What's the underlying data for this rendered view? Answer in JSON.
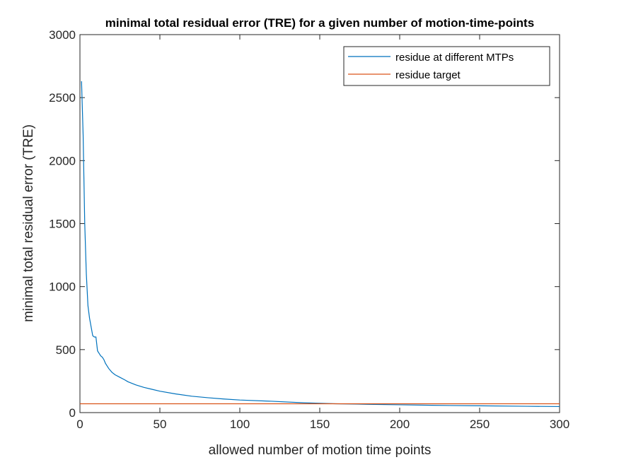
{
  "chart_data": {
    "type": "line",
    "title": "minimal total residual error (TRE) for a given number of motion-time-points",
    "xlabel": "allowed number of motion time points",
    "ylabel": "minimal total residual error (TRE)",
    "xlim": [
      0,
      300
    ],
    "ylim": [
      0,
      3000
    ],
    "xticks": [
      0,
      50,
      100,
      150,
      200,
      250,
      300
    ],
    "yticks": [
      0,
      500,
      1000,
      1500,
      2000,
      2500,
      3000
    ],
    "xtick_labels": [
      "0",
      "50",
      "100",
      "150",
      "200",
      "250",
      "300"
    ],
    "ytick_labels": [
      "0",
      "500",
      "1000",
      "1500",
      "2000",
      "2500",
      "3000"
    ],
    "grid": false,
    "legend_position": "top-right",
    "series": [
      {
        "name": "residue at different MTPs",
        "color": "#0072BD",
        "x": [
          1,
          2,
          3,
          4,
          5,
          6,
          7,
          8,
          9,
          10,
          11,
          12,
          13,
          14,
          15,
          16,
          18,
          20,
          22,
          25,
          28,
          30,
          35,
          40,
          45,
          50,
          60,
          70,
          80,
          90,
          100,
          120,
          140,
          160,
          180,
          200,
          220,
          250,
          280,
          300
        ],
        "y": [
          2630,
          2200,
          1500,
          1100,
          850,
          750,
          680,
          610,
          600,
          600,
          490,
          470,
          450,
          440,
          420,
          390,
          350,
          320,
          300,
          280,
          260,
          245,
          220,
          200,
          185,
          170,
          148,
          130,
          118,
          108,
          100,
          90,
          78,
          70,
          66,
          62,
          58,
          54,
          50,
          48
        ]
      },
      {
        "name": "residue target",
        "color": "#D95319",
        "x": [
          0,
          300
        ],
        "y": [
          70,
          70
        ]
      }
    ]
  }
}
